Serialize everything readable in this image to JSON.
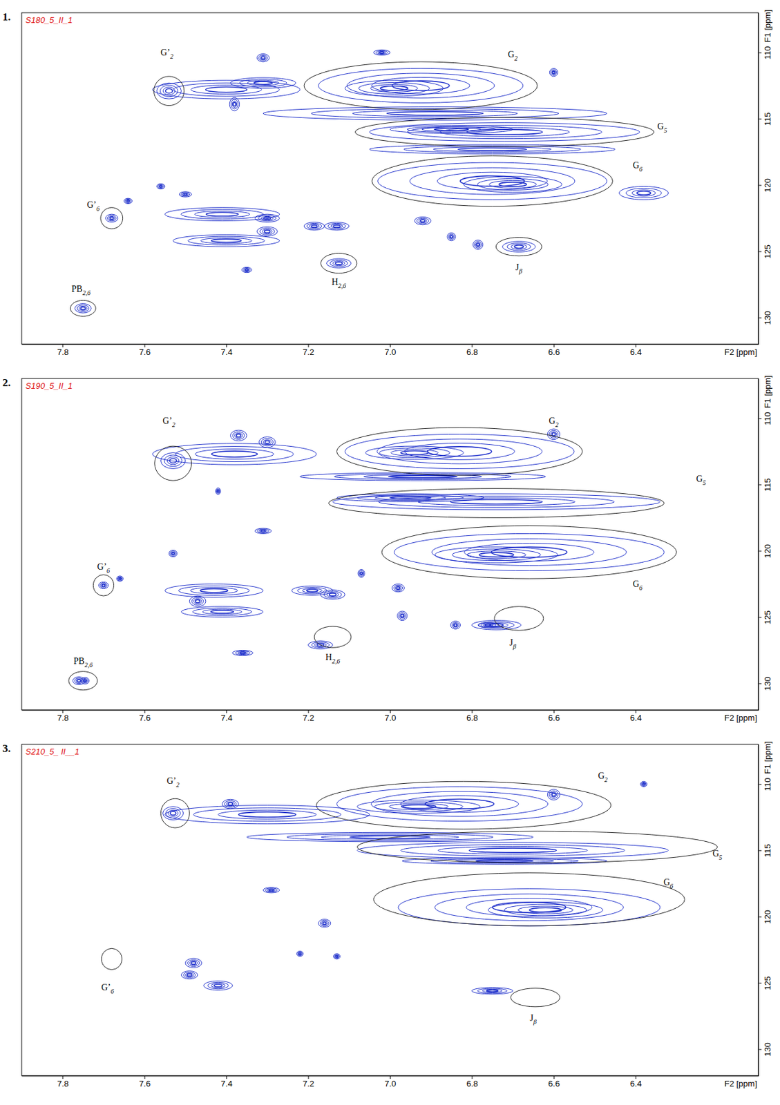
{
  "chart_data": [
    {
      "type": "contour",
      "label": "1.",
      "title": "S180_5_II_1",
      "x_label": "F2 [ppm]",
      "y_label": "F1 [ppm]",
      "xlim": [
        7.9,
        6.1
      ],
      "ylim": [
        107,
        132
      ],
      "xticks": [
        7.8,
        7.6,
        7.4,
        7.2,
        {
          "value": 7,
          "label": "7.0"
        },
        6.8,
        6.6,
        6.4
      ],
      "yticks": [
        110,
        115,
        120,
        125,
        130
      ],
      "color": "#2233cc",
      "peaks": [
        {
          "x": 6.925,
          "y": 112.5,
          "rx": 0.25,
          "ry": 1.3
        },
        {
          "x": 6.99,
          "y": 112.7,
          "rx": 0.12,
          "ry": 0.6
        },
        {
          "x": 7.4,
          "y": 112.8,
          "rx": 0.18,
          "ry": 0.7
        },
        {
          "x": 7.31,
          "y": 112.3,
          "rx": 0.08,
          "ry": 0.4
        },
        {
          "x": 7.31,
          "y": 110.4,
          "rx": 0.015,
          "ry": 0.3
        },
        {
          "x": 7.38,
          "y": 113.9,
          "rx": 0.012,
          "ry": 0.5
        },
        {
          "x": 6.89,
          "y": 114.6,
          "rx": 0.42,
          "ry": 0.5
        },
        {
          "x": 6.72,
          "y": 116.0,
          "rx": 0.33,
          "ry": 0.7
        },
        {
          "x": 6.85,
          "y": 115.8,
          "rx": 0.15,
          "ry": 0.3
        },
        {
          "x": 6.75,
          "y": 117.3,
          "rx": 0.3,
          "ry": 0.35
        },
        {
          "x": 6.75,
          "y": 119.7,
          "rx": 0.28,
          "ry": 1.4
        },
        {
          "x": 6.7,
          "y": 119.95,
          "rx": 0.12,
          "ry": 0.6
        },
        {
          "x": 6.38,
          "y": 120.6,
          "rx": 0.06,
          "ry": 0.5
        },
        {
          "x": 7.41,
          "y": 122.2,
          "rx": 0.14,
          "ry": 0.5
        },
        {
          "x": 7.3,
          "y": 122.5,
          "rx": 0.03,
          "ry": 0.3
        },
        {
          "x": 7.3,
          "y": 123.5,
          "rx": 0.025,
          "ry": 0.35
        },
        {
          "x": 7.4,
          "y": 124.2,
          "rx": 0.13,
          "ry": 0.45
        },
        {
          "x": 7.68,
          "y": 122.5,
          "rx": 0.015,
          "ry": 0.3
        },
        {
          "x": 7.64,
          "y": 121.2,
          "rx": 0.01,
          "ry": 0.2
        },
        {
          "x": 7.5,
          "y": 120.7,
          "rx": 0.015,
          "ry": 0.2
        },
        {
          "x": 7.56,
          "y": 120.1,
          "rx": 0.01,
          "ry": 0.2
        },
        {
          "x": 7.13,
          "y": 123.1,
          "rx": 0.03,
          "ry": 0.3
        },
        {
          "x": 7.185,
          "y": 123.1,
          "rx": 0.025,
          "ry": 0.3
        },
        {
          "x": 7.125,
          "y": 125.9,
          "rx": 0.03,
          "ry": 0.35
        },
        {
          "x": 6.92,
          "y": 122.7,
          "rx": 0.02,
          "ry": 0.3
        },
        {
          "x": 6.85,
          "y": 123.9,
          "rx": 0.01,
          "ry": 0.3
        },
        {
          "x": 6.785,
          "y": 124.5,
          "rx": 0.012,
          "ry": 0.35
        },
        {
          "x": 6.685,
          "y": 124.65,
          "rx": 0.04,
          "ry": 0.4
        },
        {
          "x": 7.35,
          "y": 126.4,
          "rx": 0.012,
          "ry": 0.2
        },
        {
          "x": 7.75,
          "y": 129.3,
          "rx": 0.02,
          "ry": 0.35
        },
        {
          "x": 7.02,
          "y": 110.0,
          "rx": 0.02,
          "ry": 0.2
        },
        {
          "x": 6.6,
          "y": 111.5,
          "rx": 0.01,
          "ry": 0.3
        },
        {
          "x": 7.54,
          "y": 112.9,
          "rx": 0.03,
          "ry": 0.6
        }
      ],
      "annotations": [
        {
          "text": "G’",
          "sub": "2",
          "x": 7.54,
          "y": 112.9,
          "rx": 0.037,
          "ry": 1.1,
          "label_x": 7.545,
          "label_y": 110.1
        },
        {
          "text": "G",
          "sub": "2",
          "x": 6.925,
          "y": 112.5,
          "rx": 0.285,
          "ry": 1.8,
          "label_x": 6.7,
          "label_y": 110.2
        },
        {
          "text": "G",
          "sub": "5",
          "x": 6.72,
          "y": 116.0,
          "rx": 0.365,
          "ry": 1.1,
          "label_x": 6.335,
          "label_y": 115.65
        },
        {
          "text": "G",
          "sub": "6",
          "x": 6.75,
          "y": 119.7,
          "rx": 0.294,
          "ry": 1.9,
          "label_x": 6.395,
          "label_y": 118.6
        },
        {
          "text": "G’",
          "sub": "6",
          "x": 7.68,
          "y": 122.5,
          "rx": 0.027,
          "ry": 0.8,
          "label_x": 7.725,
          "label_y": 121.55
        },
        {
          "text": "H",
          "sub": "2,6",
          "x": 7.125,
          "y": 125.9,
          "rx": 0.044,
          "ry": 0.75,
          "label_x": 7.125,
          "label_y": 127.4
        },
        {
          "text": "J",
          "sub": "β",
          "x": 6.685,
          "y": 124.65,
          "rx": 0.056,
          "ry": 0.7,
          "label_x": 6.685,
          "label_y": 126.3
        },
        {
          "text": "PB",
          "sub": "2,6",
          "x": 7.75,
          "y": 129.3,
          "rx": 0.031,
          "ry": 0.6,
          "label_x": 7.755,
          "label_y": 127.9
        }
      ]
    },
    {
      "type": "contour",
      "label": "2.",
      "title": "S190_5_II_1",
      "x_label": "F2 [ppm]",
      "y_label": "F1 [ppm]",
      "xlim": [
        7.9,
        6.1
      ],
      "ylim": [
        107,
        132
      ],
      "xticks": [
        7.8,
        7.6,
        7.4,
        7.2,
        {
          "value": 7,
          "label": "7.0"
        },
        6.8,
        6.6,
        6.4
      ],
      "yticks": [
        110,
        115,
        120,
        125,
        130
      ],
      "color": "#2233cc",
      "peaks": [
        {
          "x": 6.83,
          "y": 112.5,
          "rx": 0.28,
          "ry": 1.3
        },
        {
          "x": 6.94,
          "y": 112.6,
          "rx": 0.12,
          "ry": 0.5
        },
        {
          "x": 6.74,
          "y": 116.3,
          "rx": 0.4,
          "ry": 0.6
        },
        {
          "x": 6.95,
          "y": 116.0,
          "rx": 0.18,
          "ry": 0.3
        },
        {
          "x": 6.66,
          "y": 120.1,
          "rx": 0.33,
          "ry": 1.4
        },
        {
          "x": 6.74,
          "y": 120.3,
          "rx": 0.15,
          "ry": 0.6
        },
        {
          "x": 7.38,
          "y": 112.7,
          "rx": 0.2,
          "ry": 0.8
        },
        {
          "x": 7.37,
          "y": 111.3,
          "rx": 0.02,
          "ry": 0.4
        },
        {
          "x": 7.3,
          "y": 111.8,
          "rx": 0.02,
          "ry": 0.4
        },
        {
          "x": 6.6,
          "y": 111.2,
          "rx": 0.015,
          "ry": 0.4
        },
        {
          "x": 7.43,
          "y": 123.0,
          "rx": 0.12,
          "ry": 0.5
        },
        {
          "x": 7.41,
          "y": 124.6,
          "rx": 0.1,
          "ry": 0.4
        },
        {
          "x": 7.47,
          "y": 123.8,
          "rx": 0.02,
          "ry": 0.4
        },
        {
          "x": 7.7,
          "y": 122.6,
          "rx": 0.012,
          "ry": 0.25
        },
        {
          "x": 7.66,
          "y": 122.1,
          "rx": 0.008,
          "ry": 0.2
        },
        {
          "x": 7.53,
          "y": 120.2,
          "rx": 0.01,
          "ry": 0.25
        },
        {
          "x": 7.42,
          "y": 115.5,
          "rx": 0.006,
          "ry": 0.25
        },
        {
          "x": 7.19,
          "y": 123.0,
          "rx": 0.05,
          "ry": 0.35
        },
        {
          "x": 7.14,
          "y": 123.3,
          "rx": 0.03,
          "ry": 0.35
        },
        {
          "x": 7.17,
          "y": 127.1,
          "rx": 0.03,
          "ry": 0.3
        },
        {
          "x": 6.98,
          "y": 122.8,
          "rx": 0.015,
          "ry": 0.3
        },
        {
          "x": 6.97,
          "y": 124.9,
          "rx": 0.012,
          "ry": 0.35
        },
        {
          "x": 6.84,
          "y": 125.6,
          "rx": 0.012,
          "ry": 0.3
        },
        {
          "x": 6.74,
          "y": 125.6,
          "rx": 0.06,
          "ry": 0.35
        },
        {
          "x": 6.76,
          "y": 125.6,
          "rx": 0.025,
          "ry": 0.2
        },
        {
          "x": 7.76,
          "y": 129.8,
          "rx": 0.015,
          "ry": 0.3
        },
        {
          "x": 7.745,
          "y": 129.8,
          "rx": 0.01,
          "ry": 0.25
        },
        {
          "x": 7.31,
          "y": 118.5,
          "rx": 0.02,
          "ry": 0.2
        },
        {
          "x": 7.36,
          "y": 127.7,
          "rx": 0.025,
          "ry": 0.2
        },
        {
          "x": 7.07,
          "y": 121.7,
          "rx": 0.008,
          "ry": 0.3
        },
        {
          "x": 6.92,
          "y": 114.4,
          "rx": 0.3,
          "ry": 0.3
        },
        {
          "x": 7.53,
          "y": 113.2,
          "rx": 0.03,
          "ry": 0.6
        }
      ],
      "annotations": [
        {
          "text": "G’",
          "sub": "2",
          "x": 7.53,
          "y": 113.4,
          "rx": 0.045,
          "ry": 1.3,
          "label_x": 7.54,
          "label_y": 110.25
        },
        {
          "text": "G",
          "sub": "2",
          "x": 6.83,
          "y": 112.5,
          "rx": 0.3,
          "ry": 1.8,
          "label_x": 6.6,
          "label_y": 110.25
        },
        {
          "text": "G",
          "sub": "5",
          "x": 6.74,
          "y": 116.4,
          "rx": 0.41,
          "ry": 1.1,
          "label_x": 6.24,
          "label_y": 114.65
        },
        {
          "text": "G",
          "sub": "6",
          "x": 6.66,
          "y": 120.1,
          "rx": 0.36,
          "ry": 2.0,
          "label_x": 6.395,
          "label_y": 122.6
        },
        {
          "text": "G’",
          "sub": "6",
          "x": 7.7,
          "y": 122.6,
          "rx": 0.025,
          "ry": 0.8,
          "label_x": 7.7,
          "label_y": 121.3
        },
        {
          "text": "H",
          "sub": "2,6",
          "x": 7.14,
          "y": 126.5,
          "rx": 0.045,
          "ry": 0.8,
          "label_x": 7.14,
          "label_y": 128.1
        },
        {
          "text": "J",
          "sub": "β",
          "x": 6.685,
          "y": 125.1,
          "rx": 0.06,
          "ry": 0.9,
          "label_x": 6.7,
          "label_y": 127.0
        },
        {
          "text": "PB",
          "sub": "2,6",
          "x": 7.75,
          "y": 129.8,
          "rx": 0.035,
          "ry": 0.7,
          "label_x": 7.75,
          "label_y": 128.4
        }
      ]
    },
    {
      "type": "contour",
      "label": "3.",
      "title": "S210_5_ II__1",
      "x_label": "F2 [ppm]",
      "y_label": "F1 [ppm]",
      "xlim": [
        7.9,
        6.1
      ],
      "ylim": [
        107,
        132
      ],
      "xticks": [
        7.8,
        7.6,
        7.4,
        7.2,
        {
          "value": 7,
          "label": "7.0"
        },
        6.8,
        6.6,
        6.4
      ],
      "yticks": [
        110,
        115,
        120,
        125,
        130
      ],
      "color": "#2233cc",
      "peaks": [
        {
          "x": 6.83,
          "y": 111.5,
          "rx": 0.3,
          "ry": 1.3
        },
        {
          "x": 6.93,
          "y": 111.7,
          "rx": 0.15,
          "ry": 0.5
        },
        {
          "x": 7.3,
          "y": 112.3,
          "rx": 0.25,
          "ry": 0.7
        },
        {
          "x": 7.39,
          "y": 111.5,
          "rx": 0.02,
          "ry": 0.35
        },
        {
          "x": 6.6,
          "y": 110.8,
          "rx": 0.015,
          "ry": 0.4
        },
        {
          "x": 6.7,
          "y": 115.0,
          "rx": 0.38,
          "ry": 0.6
        },
        {
          "x": 6.72,
          "y": 115.8,
          "rx": 0.25,
          "ry": 0.25
        },
        {
          "x": 7.0,
          "y": 114.0,
          "rx": 0.35,
          "ry": 0.35
        },
        {
          "x": 6.66,
          "y": 119.3,
          "rx": 0.32,
          "ry": 1.4
        },
        {
          "x": 6.62,
          "y": 119.5,
          "rx": 0.14,
          "ry": 0.6
        },
        {
          "x": 7.29,
          "y": 118.0,
          "rx": 0.02,
          "ry": 0.2
        },
        {
          "x": 7.16,
          "y": 120.5,
          "rx": 0.015,
          "ry": 0.3
        },
        {
          "x": 7.48,
          "y": 123.5,
          "rx": 0.02,
          "ry": 0.35
        },
        {
          "x": 7.49,
          "y": 124.4,
          "rx": 0.02,
          "ry": 0.3
        },
        {
          "x": 7.42,
          "y": 125.2,
          "rx": 0.035,
          "ry": 0.35
        },
        {
          "x": 7.22,
          "y": 122.8,
          "rx": 0.008,
          "ry": 0.2
        },
        {
          "x": 7.13,
          "y": 123.0,
          "rx": 0.008,
          "ry": 0.2
        },
        {
          "x": 6.75,
          "y": 125.6,
          "rx": 0.05,
          "ry": 0.25
        },
        {
          "x": 6.38,
          "y": 110.0,
          "rx": 0.008,
          "ry": 0.2
        },
        {
          "x": 7.53,
          "y": 112.2,
          "rx": 0.025,
          "ry": 0.5
        }
      ],
      "annotations": [
        {
          "text": "G’",
          "sub": "2",
          "x": 7.525,
          "y": 112.2,
          "rx": 0.035,
          "ry": 1.1,
          "label_x": 7.53,
          "label_y": 109.85
        },
        {
          "text": "G",
          "sub": "2",
          "x": 6.82,
          "y": 111.6,
          "rx": 0.36,
          "ry": 1.8,
          "label_x": 6.48,
          "label_y": 109.45
        },
        {
          "text": "G",
          "sub": "5",
          "x": 6.64,
          "y": 114.75,
          "rx": 0.44,
          "ry": 1.2,
          "label_x": 6.2,
          "label_y": 115.3
        },
        {
          "text": "G",
          "sub": "6",
          "x": 6.66,
          "y": 118.7,
          "rx": 0.38,
          "ry": 2.0,
          "label_x": 6.32,
          "label_y": 117.5
        },
        {
          "text": "G’",
          "sub": "6",
          "x": 7.68,
          "y": 123.2,
          "rx": 0.025,
          "ry": 0.8,
          "label_x": 7.69,
          "label_y": 125.4
        },
        {
          "text": "J",
          "sub": "β",
          "x": 6.645,
          "y": 126.1,
          "rx": 0.06,
          "ry": 0.7,
          "label_x": 6.65,
          "label_y": 127.7
        }
      ]
    }
  ]
}
